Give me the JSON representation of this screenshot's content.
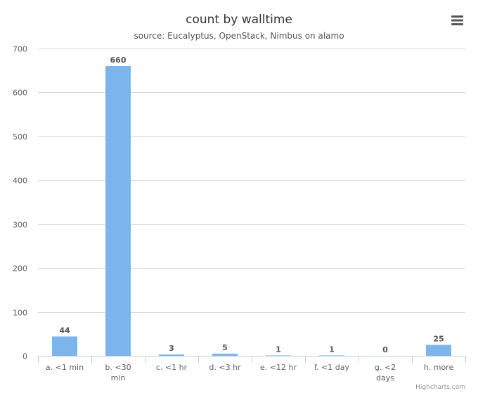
{
  "chart_data": {
    "type": "bar",
    "title": "count by walltime",
    "subtitle": "source: Eucalyptus, OpenStack, Nimbus on alamo",
    "categories": [
      "a. <1 min",
      "b. <30 min",
      "c. <1 hr",
      "d. <3 hr",
      "e. <12 hr",
      "f. <1 day",
      "g. <2 days",
      "h. more"
    ],
    "category_lines": [
      [
        "a. <1 min"
      ],
      [
        "b. <30",
        "min"
      ],
      [
        "c. <1 hr"
      ],
      [
        "d. <3 hr"
      ],
      [
        "e. <12 hr"
      ],
      [
        "f. <1 day"
      ],
      [
        "g. <2",
        "days"
      ],
      [
        "h. more"
      ]
    ],
    "values": [
      44,
      660,
      3,
      5,
      1,
      1,
      0,
      25
    ],
    "xlabel": "",
    "ylabel": "",
    "ylim": [
      0,
      700
    ],
    "yticks": [
      0,
      100,
      200,
      300,
      400,
      500,
      600,
      700
    ],
    "grid": true,
    "legend": "none",
    "bar_color": "#7cb5ec",
    "credits": "Highcharts.com"
  },
  "menu": {
    "icon": "hamburger-menu-icon"
  }
}
